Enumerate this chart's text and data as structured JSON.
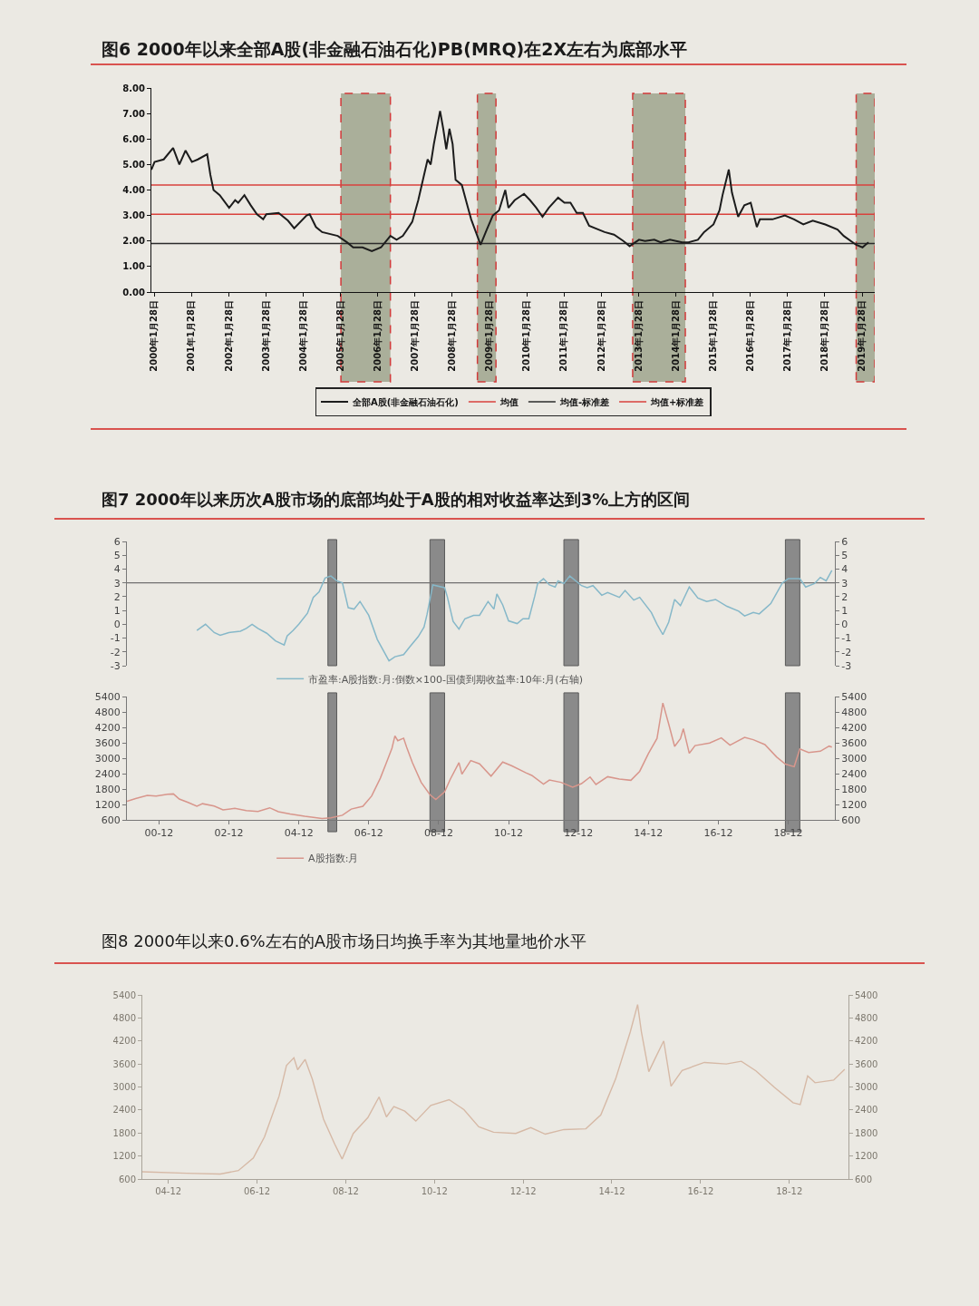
{
  "chart_data": [
    {
      "type": "line",
      "title": "图6 2000年以来全部A股(非金融石油石化)PB(MRQ)在2X左右为底部水平",
      "x": [
        "2000-01",
        "2000-02",
        "2000-05",
        "2000-08",
        "2000-10",
        "2000-12",
        "2001-02",
        "2001-04",
        "2001-07",
        "2001-08",
        "2001-09",
        "2001-11",
        "2002-02",
        "2002-04",
        "2002-05",
        "2002-07",
        "2002-09",
        "2002-11",
        "2003-01",
        "2003-02",
        "2003-06",
        "2003-09",
        "2003-11",
        "2004-03",
        "2004-04",
        "2004-06",
        "2004-08",
        "2005-01",
        "2005-04",
        "2005-06",
        "2005-09",
        "2005-12",
        "2006-03",
        "2006-06",
        "2006-08",
        "2006-10",
        "2007-01",
        "2007-03",
        "2007-06",
        "2007-07",
        "2007-08",
        "2007-10",
        "2007-11",
        "2007-12",
        "2008-01",
        "2008-02",
        "2008-03",
        "2008-05",
        "2008-07",
        "2008-08",
        "2008-11",
        "2009-01",
        "2009-03",
        "2009-05",
        "2009-07",
        "2009-08",
        "2009-10",
        "2010-01",
        "2010-03",
        "2010-05",
        "2010-07",
        "2010-09",
        "2010-12",
        "2011-02",
        "2011-04",
        "2011-06",
        "2011-08",
        "2011-10",
        "2012-01",
        "2012-03",
        "2012-06",
        "2012-09",
        "2012-11",
        "2013-02",
        "2013-04",
        "2013-07",
        "2013-09",
        "2013-12",
        "2014-04",
        "2014-06",
        "2014-09",
        "2014-11",
        "2015-02",
        "2015-04",
        "2015-05",
        "2015-07",
        "2015-08",
        "2015-10",
        "2015-12",
        "2016-02",
        "2016-04",
        "2016-05",
        "2016-09",
        "2017-01",
        "2017-04",
        "2017-07",
        "2017-10",
        "2018-02",
        "2018-06",
        "2018-08",
        "2018-12",
        "2019-02",
        "2019-03",
        "2019-04"
      ],
      "series": [
        {
          "name": "全部A股(非金融石油石化)",
          "color": "#1c1c1c",
          "values": [
            4.8,
            5.1,
            5.2,
            5.65,
            5.0,
            5.55,
            5.1,
            5.2,
            5.4,
            4.6,
            4.0,
            3.8,
            3.3,
            3.6,
            3.5,
            3.8,
            3.4,
            3.05,
            2.85,
            3.05,
            3.1,
            2.8,
            2.5,
            3.0,
            3.05,
            2.55,
            2.35,
            2.2,
            1.95,
            1.75,
            1.75,
            1.6,
            1.75,
            2.2,
            2.05,
            2.2,
            2.75,
            3.6,
            5.2,
            5.0,
            5.8,
            7.1,
            6.4,
            5.6,
            6.4,
            5.8,
            4.4,
            4.2,
            3.3,
            2.85,
            1.85,
            2.45,
            3.0,
            3.2,
            4.0,
            3.3,
            3.6,
            3.85,
            3.6,
            3.3,
            2.95,
            3.3,
            3.7,
            3.5,
            3.5,
            3.1,
            3.1,
            2.6,
            2.45,
            2.35,
            2.25,
            2.0,
            1.8,
            2.05,
            2.0,
            2.05,
            1.95,
            2.05,
            1.95,
            1.95,
            2.05,
            2.35,
            2.65,
            3.2,
            3.8,
            4.8,
            3.9,
            2.95,
            3.4,
            3.5,
            2.55,
            2.85,
            2.85,
            3.0,
            2.85,
            2.65,
            2.8,
            2.65,
            2.45,
            2.2,
            1.85,
            1.75,
            1.85,
            1.95
          ]
        }
      ],
      "xlim": [
        "2000-01",
        "2019-06"
      ],
      "xticks": [
        {
          "value": "2000-01-28",
          "label": "2000年1月28日"
        },
        {
          "value": "2001-01-28",
          "label": "2001年1月28日"
        },
        {
          "value": "2002-01-28",
          "label": "2002年1月28日"
        },
        {
          "value": "2003-01-28",
          "label": "2003年1月28日"
        },
        {
          "value": "2004-01-28",
          "label": "2004年1月28日"
        },
        {
          "value": "2005-01-28",
          "label": "2005年1月28日"
        },
        {
          "value": "2006-01-28",
          "label": "2006年1月28日"
        },
        {
          "value": "2007-01-28",
          "label": "2007年1月28日"
        },
        {
          "value": "2008-01-28",
          "label": "2008年1月28日"
        },
        {
          "value": "2009-01-28",
          "label": "2009年1月28日"
        },
        {
          "value": "2010-01-28",
          "label": "2010年1月28日"
        },
        {
          "value": "2011-01-28",
          "label": "2011年1月28日"
        },
        {
          "value": "2012-01-28",
          "label": "2012年1月28日"
        },
        {
          "value": "2013-01-28",
          "label": "2013年1月28日"
        },
        {
          "value": "2014-01-28",
          "label": "2014年1月28日"
        },
        {
          "value": "2015-01-28",
          "label": "2015年1月28日"
        },
        {
          "value": "2016-01-28",
          "label": "2016年1月28日"
        },
        {
          "value": "2017-01-28",
          "label": "2017年1月28日"
        },
        {
          "value": "2018-01-28",
          "label": "2018年1月28日"
        },
        {
          "value": "2019-01-28",
          "label": "2019年1月28日"
        }
      ],
      "ylim": [
        0,
        8
      ],
      "yticks": [
        {
          "value": 0,
          "label": "0.00"
        },
        {
          "value": 1,
          "label": "1.00"
        },
        {
          "value": 2,
          "label": "2.00"
        },
        {
          "value": 3,
          "label": "3.00"
        },
        {
          "value": 4,
          "label": "4.00"
        },
        {
          "value": 5,
          "label": "5.00"
        },
        {
          "value": 6,
          "label": "6.00"
        },
        {
          "value": 7,
          "label": "7.00"
        },
        {
          "value": 8,
          "label": "8.00"
        }
      ],
      "ref_lines": [
        {
          "axis": "y",
          "value": 3.05,
          "label": "均值",
          "color": "#d9413c"
        },
        {
          "axis": "y",
          "value": 1.9,
          "label": "均值-标准差",
          "color": "#2b2b2b"
        },
        {
          "axis": "y",
          "value": 4.2,
          "label": "均值+标准差",
          "color": "#d9413c"
        }
      ],
      "bands": [
        {
          "axis": "x",
          "from": "2005-02",
          "to": "2006-06",
          "color": "#8e967a"
        },
        {
          "axis": "x",
          "from": "2008-10",
          "to": "2009-04",
          "color": "#8e967a"
        },
        {
          "axis": "x",
          "from": "2012-12",
          "to": "2014-05",
          "color": "#8e967a"
        },
        {
          "axis": "x",
          "from": "2018-12",
          "to": "2019-06",
          "color": "#8e967a"
        }
      ],
      "legend": "bottom"
    },
    {
      "type": "line",
      "title": "图7 2000年以来历次A股市场的底部均处于A股的相对收益率达到3%上方的区间",
      "x": [
        "2002-01",
        "2002-04",
        "2002-07",
        "2002-09",
        "2002-12",
        "2003-04",
        "2003-06",
        "2003-08",
        "2003-10",
        "2004-01",
        "2004-04",
        "2004-07",
        "2004-08",
        "2004-10",
        "2004-12",
        "2005-03",
        "2005-05",
        "2005-07",
        "2005-09",
        "2005-11",
        "2006-01",
        "2006-03",
        "2006-05",
        "2006-07",
        "2006-09",
        "2006-12",
        "2007-03",
        "2007-07",
        "2007-09",
        "2007-12",
        "2008-02",
        "2008-05",
        "2008-07",
        "2008-08",
        "2008-10",
        "2009-02",
        "2009-03",
        "2009-05",
        "2009-07",
        "2009-09",
        "2009-12",
        "2010-02",
        "2010-05",
        "2010-07",
        "2010-08",
        "2010-10",
        "2010-12",
        "2011-03",
        "2011-05",
        "2011-07",
        "2011-09",
        "2011-10",
        "2011-12",
        "2012-02",
        "2012-04",
        "2012-05",
        "2012-07",
        "2012-09",
        "2013-01",
        "2013-03",
        "2013-05",
        "2013-08",
        "2013-10",
        "2014-02",
        "2014-04",
        "2014-07",
        "2014-09",
        "2015-01",
        "2015-03",
        "2015-05",
        "2015-07",
        "2015-09",
        "2015-11",
        "2016-02",
        "2016-05",
        "2016-08",
        "2016-11",
        "2017-03",
        "2017-07",
        "2017-09",
        "2017-12",
        "2018-02",
        "2018-06",
        "2018-08",
        "2018-10",
        "2018-12",
        "2019-04",
        "2019-06",
        "2019-09",
        "2019-11",
        "2020-01",
        "2020-03"
      ],
      "series": [
        {
          "name": "市盈率:A股指数:月:倒数×100-国债到期收益率:10年:月(右轴)",
          "color": "#86b8c9",
          "values": [
            -0.45,
            0.0,
            -0.6,
            -0.8,
            -0.6,
            -0.5,
            -0.3,
            0.0,
            -0.3,
            -0.65,
            -1.2,
            -1.5,
            -0.85,
            -0.45,
            0.0,
            0.8,
            1.95,
            2.35,
            3.35,
            3.5,
            3.15,
            3.0,
            1.2,
            1.1,
            1.65,
            0.65,
            -1.1,
            -2.65,
            -2.35,
            -2.2,
            -1.65,
            -0.9,
            -0.2,
            0.7,
            2.85,
            2.65,
            2.0,
            0.2,
            -0.35,
            0.4,
            0.65,
            0.65,
            1.65,
            1.1,
            2.2,
            1.4,
            0.25,
            0.05,
            0.4,
            0.4,
            2.05,
            2.95,
            3.3,
            2.85,
            2.7,
            3.15,
            2.95,
            3.5,
            2.8,
            2.65,
            2.8,
            2.1,
            2.3,
            1.95,
            2.45,
            1.75,
            1.95,
            0.85,
            0.0,
            -0.75,
            0.15,
            1.8,
            1.35,
            2.7,
            1.9,
            1.65,
            1.8,
            1.3,
            0.95,
            0.6,
            0.85,
            0.75,
            1.5,
            2.25,
            3.0,
            3.3,
            3.3,
            2.7,
            2.95,
            3.4,
            3.15,
            3.9
          ]
        }
      ],
      "xlim": [
        "2000-01",
        "2020-04"
      ],
      "ylim": [
        -3,
        6
      ],
      "yticks": [
        -3,
        -2,
        -1,
        0,
        1,
        2,
        3,
        4,
        5,
        6
      ],
      "y2lim": [
        -3,
        6
      ],
      "y2ticks": [
        -3,
        -2,
        -1,
        0,
        1,
        2,
        3,
        4,
        5,
        6
      ],
      "ref_lines": [
        {
          "axis": "y",
          "value": 3,
          "color": "#707070"
        }
      ],
      "bands": [
        {
          "axis": "x",
          "from": "2005-10",
          "to": "2006-01",
          "color": "#8a8a8a"
        },
        {
          "axis": "x",
          "from": "2008-09",
          "to": "2009-02",
          "color": "#8a8a8a"
        },
        {
          "axis": "x",
          "from": "2012-07",
          "to": "2012-12",
          "color": "#8a8a8a"
        },
        {
          "axis": "x",
          "from": "2018-11",
          "to": "2019-04",
          "color": "#8a8a8a"
        }
      ],
      "tick_labels": "y",
      "legend": "bottom"
    },
    {
      "type": "line",
      "x": [
        "2000-01",
        "2000-04",
        "2000-08",
        "2000-11",
        "2001-03",
        "2001-05",
        "2001-07",
        "2001-10",
        "2002-01",
        "2002-03",
        "2002-07",
        "2002-10",
        "2003-02",
        "2003-06",
        "2003-10",
        "2004-02",
        "2004-05",
        "2004-09",
        "2005-02",
        "2005-08",
        "2005-11",
        "2006-03",
        "2006-06",
        "2006-10",
        "2007-01",
        "2007-04",
        "2007-06",
        "2007-08",
        "2007-09",
        "2007-10",
        "2007-12",
        "2008-01",
        "2008-03",
        "2008-06",
        "2008-09",
        "2008-11",
        "2009-02",
        "2009-04",
        "2009-07",
        "2009-08",
        "2009-11",
        "2010-02",
        "2010-06",
        "2010-10",
        "2011-01",
        "2011-06",
        "2011-08",
        "2011-12",
        "2012-02",
        "2012-06",
        "2012-10",
        "2013-01",
        "2013-04",
        "2013-06",
        "2013-10",
        "2014-02",
        "2014-06",
        "2014-09",
        "2014-12",
        "2015-03",
        "2015-05",
        "2015-07",
        "2015-09",
        "2015-11",
        "2015-12",
        "2016-02",
        "2016-04",
        "2016-09",
        "2017-01",
        "2017-04",
        "2017-09",
        "2017-12",
        "2018-04",
        "2018-08",
        "2018-11",
        "2019-02",
        "2019-04",
        "2019-07",
        "2019-11",
        "2020-02",
        "2020-03"
      ],
      "series": [
        {
          "name": "A股指数:月",
          "color": "#d8968c",
          "values": [
            1320,
            1430,
            1550,
            1530,
            1600,
            1610,
            1410,
            1280,
            1130,
            1230,
            1140,
            990,
            1050,
            960,
            930,
            1070,
            920,
            830,
            740,
            650,
            680,
            780,
            1020,
            1130,
            1530,
            2220,
            2800,
            3390,
            3870,
            3680,
            3780,
            3430,
            2830,
            2060,
            1580,
            1390,
            1690,
            2180,
            2830,
            2380,
            2910,
            2780,
            2300,
            2850,
            2710,
            2430,
            2330,
            1990,
            2150,
            2060,
            1870,
            2010,
            2270,
            1980,
            2280,
            2190,
            2140,
            2490,
            3180,
            3770,
            5150,
            4330,
            3460,
            3760,
            4150,
            3190,
            3490,
            3590,
            3790,
            3510,
            3810,
            3720,
            3530,
            3050,
            2770,
            2670,
            3360,
            3220,
            3270,
            3470,
            3430
          ]
        }
      ],
      "xlim": [
        "2000-01",
        "2020-04"
      ],
      "xticks": [
        {
          "value": "2000-12",
          "label": "00-12"
        },
        {
          "value": "2002-12",
          "label": "02-12"
        },
        {
          "value": "2004-12",
          "label": "04-12"
        },
        {
          "value": "2006-12",
          "label": "06-12"
        },
        {
          "value": "2008-12",
          "label": "08-12"
        },
        {
          "value": "2010-12",
          "label": "10-12"
        },
        {
          "value": "2012-12",
          "label": "12-12"
        },
        {
          "value": "2014-12",
          "label": "14-12"
        },
        {
          "value": "2016-12",
          "label": "16-12"
        },
        {
          "value": "2018-12",
          "label": "18-12"
        }
      ],
      "ylim": [
        600,
        5400
      ],
      "yticks": [
        600,
        1200,
        1800,
        2400,
        3000,
        3600,
        4200,
        4800,
        5400
      ],
      "y2lim": [
        600,
        5400
      ],
      "y2ticks": [
        600,
        1200,
        1800,
        2400,
        3000,
        3600,
        4200,
        4800,
        5400
      ],
      "bands": [
        {
          "axis": "x",
          "from": "2005-10",
          "to": "2006-01",
          "color": "#8a8a8a"
        },
        {
          "axis": "x",
          "from": "2008-09",
          "to": "2009-02",
          "color": "#8a8a8a"
        },
        {
          "axis": "x",
          "from": "2012-07",
          "to": "2012-12",
          "color": "#8a8a8a"
        },
        {
          "axis": "x",
          "from": "2018-11",
          "to": "2019-04",
          "color": "#8a8a8a"
        }
      ],
      "legend": "bottom"
    },
    {
      "type": "line",
      "title": "图8 2000年以来0.6%左右的A股市场日均换手率为其地量地价水平",
      "x": [
        "2004-05",
        "2005-05",
        "2006-02",
        "2006-07",
        "2006-11",
        "2007-02",
        "2007-06",
        "2007-08",
        "2007-10",
        "2007-11",
        "2008-01",
        "2008-03",
        "2008-06",
        "2008-09",
        "2008-11",
        "2009-02",
        "2009-06",
        "2009-09",
        "2009-11",
        "2010-01",
        "2010-04",
        "2010-07",
        "2010-11",
        "2011-04",
        "2011-08",
        "2011-12",
        "2012-04",
        "2012-10",
        "2013-02",
        "2013-06",
        "2013-11",
        "2014-05",
        "2014-09",
        "2015-01",
        "2015-05",
        "2015-07",
        "2015-08",
        "2015-10",
        "2015-12",
        "2016-02",
        "2016-04",
        "2016-07",
        "2017-01",
        "2017-07",
        "2017-11",
        "2018-03",
        "2018-08",
        "2019-01",
        "2019-03",
        "2019-05",
        "2019-07",
        "2019-12",
        "2020-03"
      ],
      "series": [
        {
          "color": "#d6b9a6",
          "values": [
            790,
            750,
            730,
            820,
            1150,
            1700,
            2760,
            3560,
            3760,
            3450,
            3720,
            3200,
            2160,
            1510,
            1120,
            1790,
            2200,
            2740,
            2220,
            2490,
            2370,
            2110,
            2520,
            2670,
            2410,
            1960,
            1820,
            1790,
            1940,
            1770,
            1890,
            1910,
            2270,
            3210,
            4430,
            5150,
            4440,
            3400,
            3800,
            4200,
            3020,
            3430,
            3640,
            3600,
            3670,
            3420,
            2990,
            2590,
            2540,
            3290,
            3110,
            3180,
            3460
          ]
        }
      ],
      "xlim": [
        "2004-05",
        "2020-04"
      ],
      "xticks": [
        {
          "value": "2004-12",
          "label": "04-12"
        },
        {
          "value": "2006-12",
          "label": "06-12"
        },
        {
          "value": "2008-12",
          "label": "08-12"
        },
        {
          "value": "2010-12",
          "label": "10-12"
        },
        {
          "value": "2012-12",
          "label": "12-12"
        },
        {
          "value": "2014-12",
          "label": "14-12"
        },
        {
          "value": "2016-12",
          "label": "16-12"
        },
        {
          "value": "2018-12",
          "label": "18-12"
        }
      ],
      "ylim": [
        600,
        5400
      ],
      "yticks": [
        600,
        1200,
        1800,
        2400,
        3000,
        3600,
        4200,
        4800,
        5400
      ],
      "y2lim": [
        600,
        5400
      ],
      "y2ticks": [
        600,
        1200,
        1800,
        2400,
        3000,
        3600,
        4200,
        4800,
        5400
      ]
    }
  ]
}
